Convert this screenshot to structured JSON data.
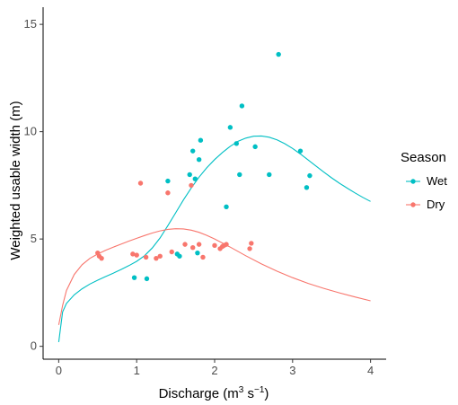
{
  "chart_data": {
    "type": "scatter",
    "xlabel": "Discharge (m",
    "xlabel_sup": "3",
    "xlabel_mid": " s",
    "xlabel_sup2": "−1",
    "xlabel_end": ")",
    "ylabel": "Weighted usable width (m)",
    "xlim": [
      -0.2,
      4.2
    ],
    "ylim": [
      -0.6,
      15.8
    ],
    "x_ticks": [
      0,
      1,
      2,
      3,
      4
    ],
    "y_ticks": [
      0,
      5,
      10,
      15
    ],
    "grid": false,
    "legend": {
      "title": "Season",
      "placement": "right",
      "entries": [
        "Wet",
        "Dry"
      ]
    },
    "series": [
      {
        "name": "Wet",
        "color": "#00bfc4",
        "points": [
          [
            0.97,
            3.2
          ],
          [
            1.13,
            3.15
          ],
          [
            1.4,
            7.7
          ],
          [
            1.52,
            4.3
          ],
          [
            1.55,
            4.2
          ],
          [
            1.68,
            8.0
          ],
          [
            1.72,
            9.1
          ],
          [
            1.75,
            7.8
          ],
          [
            1.78,
            4.35
          ],
          [
            1.8,
            8.7
          ],
          [
            1.82,
            9.6
          ],
          [
            2.15,
            6.5
          ],
          [
            2.2,
            10.2
          ],
          [
            2.28,
            9.45
          ],
          [
            2.32,
            8.0
          ],
          [
            2.35,
            11.2
          ],
          [
            2.52,
            9.3
          ],
          [
            2.7,
            8.0
          ],
          [
            2.82,
            13.6
          ],
          [
            3.1,
            9.1
          ],
          [
            3.18,
            7.4
          ],
          [
            3.22,
            7.95
          ]
        ],
        "curve": [
          [
            0.0,
            0.2
          ],
          [
            0.05,
            1.6
          ],
          [
            0.1,
            2.0
          ],
          [
            0.2,
            2.4
          ],
          [
            0.3,
            2.68
          ],
          [
            0.4,
            2.9
          ],
          [
            0.5,
            3.08
          ],
          [
            0.6,
            3.25
          ],
          [
            0.7,
            3.41
          ],
          [
            0.8,
            3.58
          ],
          [
            0.9,
            3.76
          ],
          [
            1.0,
            3.96
          ],
          [
            1.1,
            4.22
          ],
          [
            1.2,
            4.58
          ],
          [
            1.3,
            5.05
          ],
          [
            1.4,
            5.62
          ],
          [
            1.5,
            6.22
          ],
          [
            1.6,
            6.82
          ],
          [
            1.7,
            7.38
          ],
          [
            1.8,
            7.88
          ],
          [
            1.9,
            8.32
          ],
          [
            2.0,
            8.7
          ],
          [
            2.1,
            9.03
          ],
          [
            2.2,
            9.32
          ],
          [
            2.3,
            9.55
          ],
          [
            2.4,
            9.7
          ],
          [
            2.5,
            9.79
          ],
          [
            2.6,
            9.8
          ],
          [
            2.7,
            9.74
          ],
          [
            2.8,
            9.62
          ],
          [
            2.9,
            9.44
          ],
          [
            3.0,
            9.22
          ],
          [
            3.1,
            8.96
          ],
          [
            3.2,
            8.68
          ],
          [
            3.3,
            8.4
          ],
          [
            3.4,
            8.12
          ],
          [
            3.5,
            7.85
          ],
          [
            3.6,
            7.6
          ],
          [
            3.7,
            7.37
          ],
          [
            3.8,
            7.15
          ],
          [
            3.9,
            6.94
          ],
          [
            4.0,
            6.75
          ]
        ]
      },
      {
        "name": "Dry",
        "color": "#f8766d",
        "points": [
          [
            0.5,
            4.35
          ],
          [
            0.52,
            4.2
          ],
          [
            0.55,
            4.1
          ],
          [
            0.95,
            4.3
          ],
          [
            1.0,
            4.25
          ],
          [
            1.05,
            7.6
          ],
          [
            1.12,
            4.15
          ],
          [
            1.25,
            4.1
          ],
          [
            1.3,
            4.2
          ],
          [
            1.4,
            7.15
          ],
          [
            1.45,
            4.4
          ],
          [
            1.62,
            4.75
          ],
          [
            1.72,
            4.6
          ],
          [
            1.7,
            7.5
          ],
          [
            1.8,
            4.75
          ],
          [
            1.85,
            4.15
          ],
          [
            2.0,
            4.7
          ],
          [
            2.07,
            4.55
          ],
          [
            2.1,
            4.65
          ],
          [
            2.12,
            4.7
          ],
          [
            2.15,
            4.75
          ],
          [
            2.45,
            4.55
          ],
          [
            2.47,
            4.8
          ]
        ],
        "curve": [
          [
            0.0,
            1.0
          ],
          [
            0.05,
            1.9
          ],
          [
            0.1,
            2.6
          ],
          [
            0.2,
            3.35
          ],
          [
            0.3,
            3.8
          ],
          [
            0.4,
            4.1
          ],
          [
            0.5,
            4.3
          ],
          [
            0.6,
            4.47
          ],
          [
            0.7,
            4.62
          ],
          [
            0.8,
            4.76
          ],
          [
            0.9,
            4.9
          ],
          [
            1.0,
            5.03
          ],
          [
            1.1,
            5.16
          ],
          [
            1.2,
            5.28
          ],
          [
            1.3,
            5.38
          ],
          [
            1.4,
            5.45
          ],
          [
            1.5,
            5.48
          ],
          [
            1.6,
            5.47
          ],
          [
            1.7,
            5.41
          ],
          [
            1.8,
            5.31
          ],
          [
            1.9,
            5.17
          ],
          [
            2.0,
            5.0
          ],
          [
            2.2,
            4.62
          ],
          [
            2.4,
            4.22
          ],
          [
            2.6,
            3.84
          ],
          [
            2.8,
            3.5
          ],
          [
            3.0,
            3.2
          ],
          [
            3.2,
            2.93
          ],
          [
            3.4,
            2.7
          ],
          [
            3.6,
            2.49
          ],
          [
            3.8,
            2.3
          ],
          [
            4.0,
            2.12
          ]
        ]
      }
    ]
  }
}
